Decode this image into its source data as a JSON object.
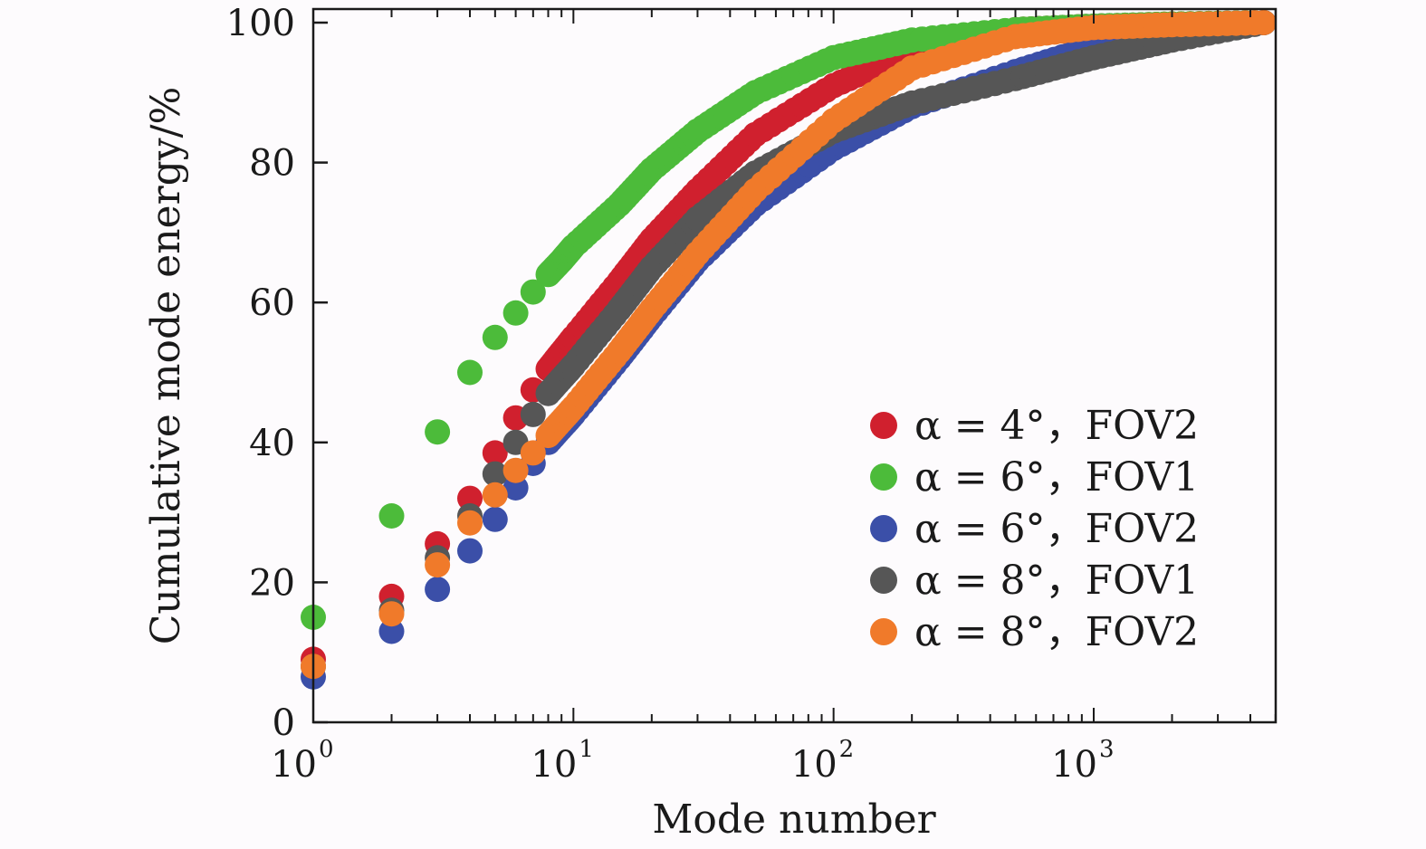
{
  "chart_data": {
    "type": "scatter",
    "title": "",
    "xlabel": "Mode number",
    "ylabel": "Cumulative mode energy/%",
    "xscale": "log",
    "xlim": [
      1,
      5000
    ],
    "ylim": [
      0,
      100
    ],
    "x_ticks": [
      {
        "base": "10",
        "exp": "0",
        "value": 1
      },
      {
        "base": "10",
        "exp": "1",
        "value": 10
      },
      {
        "base": "10",
        "exp": "2",
        "value": 100
      },
      {
        "base": "10",
        "exp": "3",
        "value": 1000
      }
    ],
    "y_ticks": [
      "0",
      "20",
      "40",
      "60",
      "80",
      "100"
    ],
    "grid": false,
    "legend_position": "lower-right",
    "series": [
      {
        "name": "α = 4°，FOV2",
        "color": "#d0202e",
        "x": [
          1,
          2,
          3,
          4,
          5,
          6,
          7,
          8,
          10,
          15,
          20,
          30,
          50,
          100,
          200,
          500,
          1000,
          2000,
          4500
        ],
        "y": [
          9,
          18,
          25.5,
          32,
          38.5,
          43.5,
          47.5,
          50.5,
          55,
          63,
          69,
          76,
          84,
          91,
          96,
          99,
          99.5,
          99.8,
          100
        ]
      },
      {
        "name": "α = 6°，FOV1",
        "color": "#4cbb3a",
        "x": [
          1,
          2,
          3,
          4,
          5,
          6,
          7,
          8,
          9,
          10,
          15,
          20,
          30,
          50,
          100,
          200,
          500,
          1000,
          2000,
          4500
        ],
        "y": [
          15,
          29.5,
          41.5,
          50,
          55,
          58.5,
          61.5,
          64,
          66,
          68,
          74,
          79,
          84.5,
          90,
          95,
          97.5,
          99,
          99.5,
          99.8,
          100
        ]
      },
      {
        "name": "α = 6°，FOV2",
        "color": "#3b4fa8",
        "x": [
          1,
          2,
          3,
          4,
          5,
          6,
          7,
          8,
          10,
          15,
          20,
          30,
          50,
          100,
          200,
          500,
          1000,
          2000,
          4500
        ],
        "y": [
          6.5,
          13,
          19,
          24.5,
          29,
          33.5,
          37,
          40,
          44,
          52,
          58,
          66,
          74,
          82,
          88,
          93,
          96.5,
          98.5,
          100
        ]
      },
      {
        "name": "α = 8°，FOV1",
        "color": "#565656",
        "x": [
          1,
          2,
          3,
          4,
          5,
          6,
          7,
          8,
          10,
          15,
          20,
          30,
          50,
          100,
          200,
          500,
          1000,
          2000,
          4500
        ],
        "y": [
          8,
          16,
          23.5,
          29.5,
          35.5,
          40,
          44,
          47,
          51,
          59,
          65,
          72,
          78.5,
          84.5,
          88.5,
          92,
          95,
          97.5,
          100
        ]
      },
      {
        "name": "α = 8°，FOV2",
        "color": "#f07a2a",
        "x": [
          1,
          2,
          3,
          4,
          5,
          6,
          7,
          8,
          10,
          15,
          20,
          30,
          50,
          100,
          200,
          500,
          1000,
          2000,
          4500
        ],
        "y": [
          8,
          15.5,
          22.5,
          28.5,
          32.5,
          36,
          38.5,
          41,
          45,
          53,
          59,
          67,
          76,
          86,
          93.5,
          98,
          99.3,
          99.7,
          100
        ]
      }
    ]
  }
}
